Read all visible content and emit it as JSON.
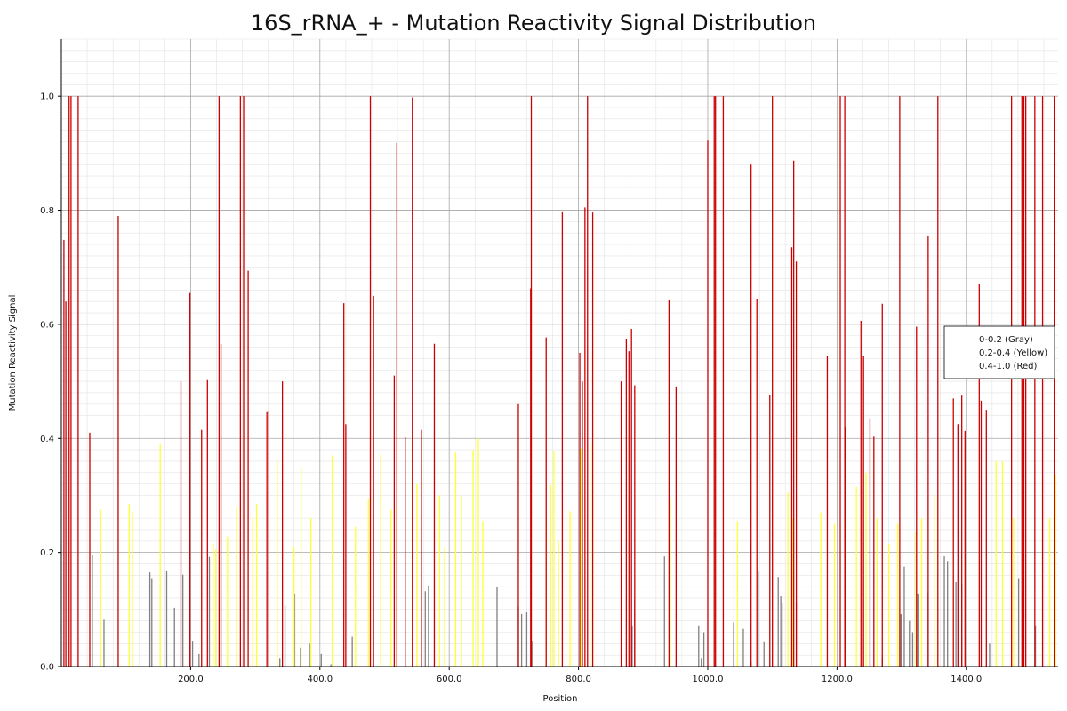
{
  "chart_data": {
    "type": "bar",
    "title": "16S_rRNA_+ - Mutation Reactivity Signal Distribution",
    "xlabel": "Position",
    "ylabel": "Mutation Reactivity Signal",
    "xlim": [
      0,
      1542
    ],
    "ylim": [
      0,
      1.1
    ],
    "x_ticks": [
      200,
      400,
      600,
      800,
      1000,
      1200,
      1400
    ],
    "x_tick_labels": [
      "200.0",
      "400.0",
      "600.0",
      "800.0",
      "1000.0",
      "1200.0",
      "1400.0"
    ],
    "y_ticks": [
      0,
      0.2,
      0.4,
      0.6,
      0.8,
      1.0
    ],
    "y_tick_labels": [
      "0.0",
      "0.2",
      "0.4",
      "0.6",
      "0.8",
      "1.0"
    ],
    "grid": true,
    "legend_position": "right",
    "series": [
      {
        "name": "0-0.2 (Gray)",
        "color": "#808080",
        "x": [
          48,
          66,
          137,
          140,
          163,
          175,
          188,
          203,
          213,
          229,
          338,
          346,
          361,
          370,
          385,
          402,
          417,
          450,
          563,
          568,
          674,
          707,
          712,
          720,
          729,
          883,
          887,
          933,
          986,
          990,
          994,
          1040,
          1055,
          1067,
          1078,
          1087,
          1109,
          1113,
          1115,
          1137,
          1270,
          1299,
          1304,
          1312,
          1317,
          1325,
          1341,
          1366,
          1371,
          1384,
          1393,
          1436,
          1481,
          1487,
          1507
        ],
        "values": [
          0.195,
          0.082,
          0.165,
          0.155,
          0.168,
          0.103,
          0.161,
          0.045,
          0.022,
          0.192,
          0.015,
          0.107,
          0.128,
          0.033,
          0.04,
          0.022,
          0.004,
          0.052,
          0.132,
          0.142,
          0.14,
          0.105,
          0.092,
          0.095,
          0.045,
          0.072,
          0.118,
          0.193,
          0.072,
          0.015,
          0.06,
          0.077,
          0.066,
          0.008,
          0.168,
          0.044,
          0.157,
          0.123,
          0.112,
          0.113,
          0.016,
          0.092,
          0.175,
          0.08,
          0.06,
          0.128,
          0.13,
          0.193,
          0.185,
          0.148,
          0.145,
          0.04,
          0.155,
          0.133,
          0.072
        ]
      },
      {
        "name": "0.2-0.4 (Yellow)",
        "color": "#ffff33",
        "x": [
          61,
          105,
          110,
          153,
          235,
          239,
          257,
          271,
          296,
          302,
          334,
          360,
          371,
          386,
          419,
          455,
          475,
          494,
          510,
          519,
          550,
          585,
          593,
          610,
          619,
          637,
          645,
          652,
          750,
          757,
          762,
          769,
          787,
          804,
          818,
          942,
          1046,
          1124,
          1132,
          1175,
          1196,
          1212,
          1230,
          1238,
          1245,
          1262,
          1280,
          1294,
          1322,
          1331,
          1351,
          1398,
          1446,
          1456,
          1473,
          1529,
          1538
        ],
        "values": [
          0.275,
          0.285,
          0.272,
          0.39,
          0.215,
          0.205,
          0.228,
          0.28,
          0.26,
          0.285,
          0.36,
          0.21,
          0.35,
          0.26,
          0.37,
          0.245,
          0.295,
          0.372,
          0.275,
          0.28,
          0.32,
          0.3,
          0.21,
          0.375,
          0.3,
          0.38,
          0.4,
          0.255,
          0.262,
          0.318,
          0.378,
          0.22,
          0.272,
          0.382,
          0.39,
          0.295,
          0.255,
          0.305,
          0.26,
          0.27,
          0.25,
          0.33,
          0.315,
          0.31,
          0.34,
          0.26,
          0.215,
          0.25,
          0.235,
          0.26,
          0.3,
          0.385,
          0.36,
          0.36,
          0.26,
          0.26,
          0.335
        ]
      },
      {
        "name": "0.4-1.0 (Red)",
        "color": "#cc0000",
        "x": [
          4,
          7,
          12,
          15,
          26,
          44,
          88,
          185,
          199,
          217,
          226,
          244,
          247,
          277,
          282,
          289,
          318,
          321,
          342,
          437,
          440,
          478,
          483,
          515,
          519,
          532,
          543,
          557,
          577,
          707,
          750,
          726,
          727,
          775,
          802,
          806,
          810,
          814,
          822,
          866,
          874,
          878,
          882,
          887,
          940,
          951,
          1000,
          1010,
          1012,
          1024,
          1067,
          1076,
          1096,
          1100,
          1130,
          1133,
          1137,
          1185,
          1205,
          1212,
          1213,
          1237,
          1241,
          1251,
          1257,
          1270,
          1297,
          1323,
          1341,
          1356,
          1380,
          1387,
          1393,
          1398,
          1420,
          1423,
          1431,
          1470,
          1486,
          1489,
          1492,
          1506,
          1518,
          1536
        ],
        "values": [
          0.748,
          0.64,
          1.0,
          1.0,
          1.0,
          0.41,
          0.79,
          0.5,
          0.655,
          0.415,
          0.502,
          1.0,
          0.566,
          1.0,
          1.0,
          0.694,
          0.446,
          0.447,
          0.5,
          0.637,
          0.425,
          1.0,
          0.65,
          0.51,
          0.918,
          0.402,
          0.998,
          0.415,
          0.566,
          0.46,
          0.577,
          0.663,
          1.0,
          0.798,
          0.55,
          0.5,
          0.805,
          1.0,
          0.796,
          0.5,
          0.575,
          0.553,
          0.592,
          0.493,
          0.642,
          0.491,
          0.922,
          1.0,
          1.0,
          1.0,
          0.88,
          0.645,
          0.476,
          1.0,
          0.735,
          0.887,
          0.71,
          0.545,
          1.0,
          1.0,
          0.42,
          0.606,
          0.545,
          0.435,
          0.403,
          0.636,
          1.0,
          0.596,
          0.755,
          1.0,
          0.47,
          0.425,
          0.475,
          0.413,
          0.67,
          0.466,
          0.45,
          1.0,
          1.0,
          1.0,
          1.0,
          1.0,
          1.0,
          1.0
        ]
      }
    ]
  }
}
